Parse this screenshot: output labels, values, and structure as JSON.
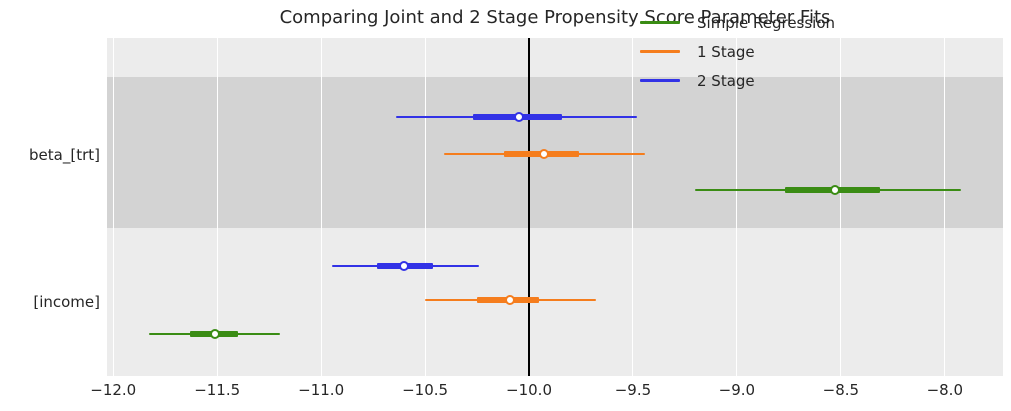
{
  "title": "Comparing Joint and 2 Stage Propensity Score Parameter Fits",
  "chart_data": {
    "type": "forest",
    "title": "Comparing Joint and 2 Stage Propensity Score Parameter Fits",
    "xlabel": "",
    "ylabel": "",
    "xlim": [
      -12.03,
      -7.72
    ],
    "grid": true,
    "reference_line_x": -10.0,
    "reference_line_color": "#000000",
    "background_band_dark_color": "#d3d3d3",
    "background_light_color": "#ececec",
    "x_ticks": [
      {
        "value": -12.0,
        "label": "−12.0"
      },
      {
        "value": -11.5,
        "label": "−11.5"
      },
      {
        "value": -11.0,
        "label": "−11.0"
      },
      {
        "value": -10.5,
        "label": "−10.5"
      },
      {
        "value": -10.0,
        "label": "−10.0"
      },
      {
        "value": -9.5,
        "label": "−9.5"
      },
      {
        "value": -9.0,
        "label": "−9.0"
      },
      {
        "value": -8.5,
        "label": "−8.5"
      },
      {
        "value": -8.0,
        "label": "−8.0"
      }
    ],
    "categories": [
      "beta_[trt]",
      "[income]"
    ],
    "legend": {
      "position": "upper right",
      "entries": [
        {
          "label": "Simple Regression",
          "color": "#3a8c14"
        },
        {
          "label": "1 Stage",
          "color": "#f57d1d"
        },
        {
          "label": "2 Stage",
          "color": "#3232e6"
        }
      ]
    },
    "series": [
      {
        "name": "Simple Regression",
        "color": "#3a8c14",
        "points": [
          {
            "category": "beta_[trt]",
            "mean": -8.53,
            "inner_interval": [
              -8.77,
              -8.31
            ],
            "outer_interval": [
              -9.2,
              -7.92
            ]
          },
          {
            "category": "[income]",
            "mean": -11.51,
            "inner_interval": [
              -11.63,
              -11.4
            ],
            "outer_interval": [
              -11.83,
              -11.2
            ]
          }
        ]
      },
      {
        "name": "1 Stage",
        "color": "#f57d1d",
        "points": [
          {
            "category": "beta_[trt]",
            "mean": -9.93,
            "inner_interval": [
              -10.12,
              -9.76
            ],
            "outer_interval": [
              -10.41,
              -9.44
            ]
          },
          {
            "category": "[income]",
            "mean": -10.09,
            "inner_interval": [
              -10.25,
              -9.95
            ],
            "outer_interval": [
              -10.5,
              -9.68
            ]
          }
        ]
      },
      {
        "name": "2 Stage",
        "color": "#3232e6",
        "points": [
          {
            "category": "beta_[trt]",
            "mean": -10.05,
            "inner_interval": [
              -10.27,
              -9.84
            ],
            "outer_interval": [
              -10.64,
              -9.48
            ]
          },
          {
            "category": "[income]",
            "mean": -10.6,
            "inner_interval": [
              -10.73,
              -10.46
            ],
            "outer_interval": [
              -10.95,
              -10.24
            ]
          }
        ]
      }
    ]
  }
}
